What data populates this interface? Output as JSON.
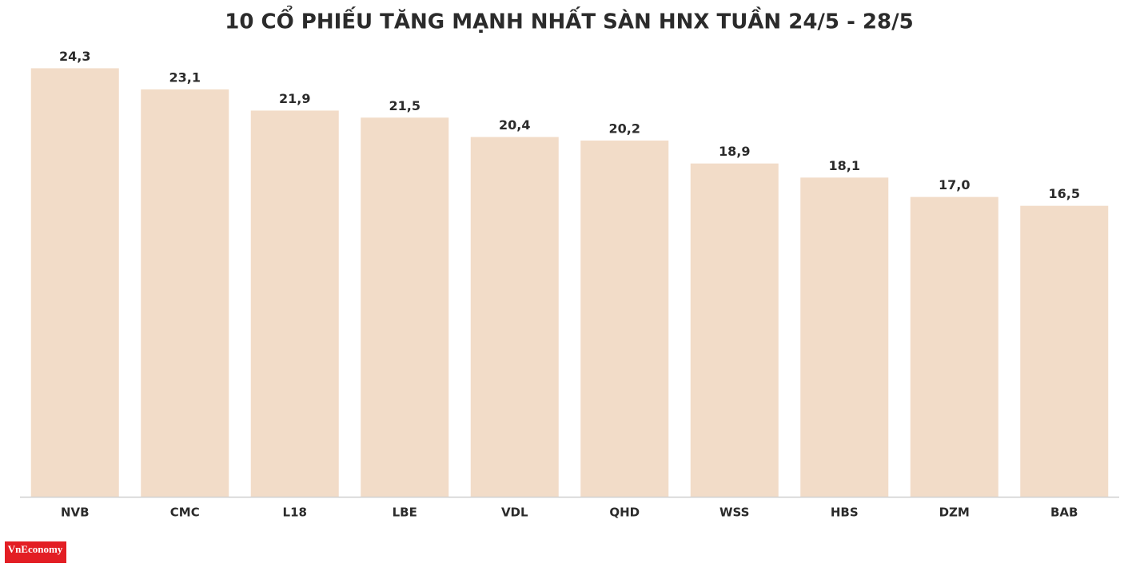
{
  "chart_data": {
    "type": "bar",
    "title": "10 CỔ PHIẾU TĂNG MẠNH NHẤT SÀN HNX TUẦN 24/5 - 28/5",
    "categories": [
      "NVB",
      "CMC",
      "L18",
      "LBE",
      "VDL",
      "QHD",
      "WSS",
      "HBS",
      "DZM",
      "BAB"
    ],
    "values": [
      24.3,
      23.1,
      21.9,
      21.5,
      20.4,
      20.2,
      18.9,
      18.1,
      17.0,
      16.5
    ],
    "value_labels": [
      "24,3",
      "23,1",
      "21,9",
      "21,5",
      "20,4",
      "20,2",
      "18,9",
      "18,1",
      "17,0",
      "16,5"
    ],
    "color": "#f2dcc8",
    "ylim": [
      0,
      25
    ]
  },
  "logo": "VnEconomy"
}
